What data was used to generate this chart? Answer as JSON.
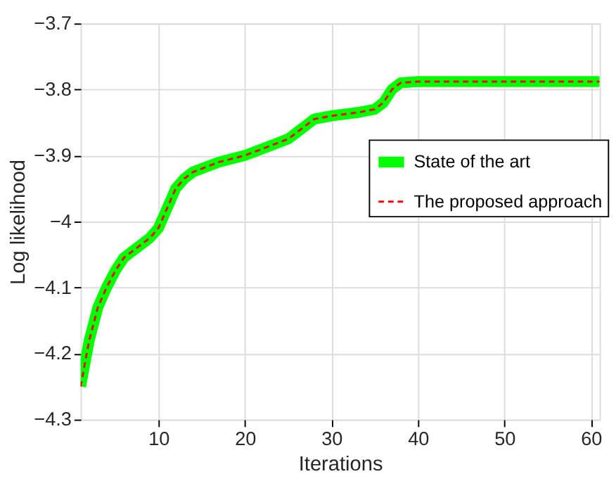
{
  "chart_data": {
    "type": "line",
    "xlabel": "Iterations",
    "ylabel": "Log likelihood",
    "x": [
      1,
      2,
      3,
      4,
      5,
      6,
      7,
      8,
      9,
      10,
      11,
      12,
      13,
      14,
      15,
      17,
      20,
      23,
      25,
      26,
      27,
      28,
      30,
      33,
      35,
      36,
      37,
      38,
      40,
      50,
      61
    ],
    "xlim": [
      1,
      61
    ],
    "xticks": [
      10,
      20,
      30,
      40,
      50,
      60
    ],
    "ylim": [
      -4.3,
      -3.7
    ],
    "yticks": [
      -4.3,
      -4.2,
      -4.1,
      -4,
      -3.9,
      -3.8,
      -3.7
    ],
    "series": [
      {
        "name": "State of the art",
        "color": "#00ff00",
        "line_style": "solid",
        "values": [
          -4.25,
          -4.18,
          -4.13,
          -4.1,
          -4.075,
          -4.055,
          -4.045,
          -4.035,
          -4.025,
          -4.01,
          -3.98,
          -3.95,
          -3.935,
          -3.925,
          -3.92,
          -3.91,
          -3.9,
          -3.885,
          -3.875,
          -3.865,
          -3.855,
          -3.845,
          -3.84,
          -3.835,
          -3.83,
          -3.82,
          -3.8,
          -3.79,
          -3.788,
          -3.788,
          -3.788
        ]
      },
      {
        "name": "The proposed approach",
        "color": "#ff0000",
        "line_style": "dashed",
        "values": [
          -4.25,
          -4.18,
          -4.13,
          -4.1,
          -4.075,
          -4.055,
          -4.045,
          -4.035,
          -4.025,
          -4.01,
          -3.98,
          -3.95,
          -3.935,
          -3.925,
          -3.92,
          -3.91,
          -3.9,
          -3.885,
          -3.875,
          -3.865,
          -3.855,
          -3.845,
          -3.84,
          -3.835,
          -3.83,
          -3.82,
          -3.8,
          -3.79,
          -3.788,
          -3.788,
          -3.788
        ]
      }
    ],
    "grid": true,
    "legend": "right",
    "marker": "none"
  }
}
